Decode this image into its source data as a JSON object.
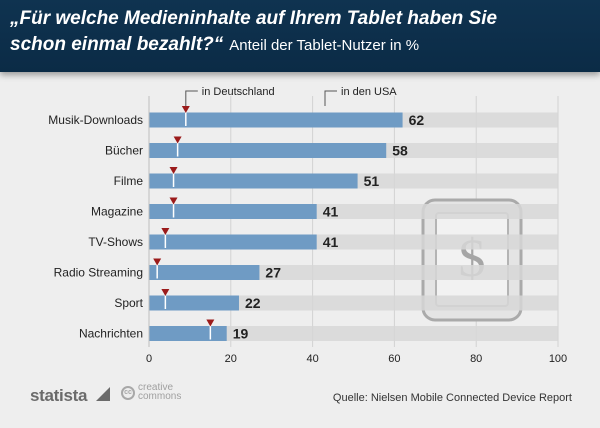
{
  "header": {
    "title_line1": "„Für welche Medieninhalte auf Ihrem Tablet haben Sie",
    "title_line2": "schon einmal bezahlt?“",
    "subtitle": "Anteil der Tablet-Nutzer in %"
  },
  "footer": {
    "brand": "statista",
    "license_line1": "creative",
    "license_line2": "commons",
    "license_badge": "cc",
    "source": "Quelle: Nielsen Mobile Connected Device Report"
  },
  "colors": {
    "bar": "#6f9bc4",
    "track": "#d7d7d7",
    "marker": "#9b1b1b",
    "header": "#0f3350"
  },
  "icon": {
    "name": "tablet-dollar-icon",
    "glyph": "$"
  },
  "chart_data": {
    "type": "bar",
    "orientation": "horizontal",
    "title": "„Für welche Medieninhalte auf Ihrem Tablet haben Sie schon einmal bezahlt?“",
    "subtitle": "Anteil der Tablet-Nutzer in %",
    "categories": [
      "Musik-Downloads",
      "Bücher",
      "Filme",
      "Magazine",
      "TV-Shows",
      "Radio Streaming",
      "Sport",
      "Nachrichten"
    ],
    "series": [
      {
        "name": "in den USA",
        "values": [
          62,
          58,
          51,
          41,
          41,
          27,
          22,
          19
        ]
      },
      {
        "name": "in Deutschland",
        "values": [
          9,
          7,
          6,
          6,
          4,
          2,
          4,
          15
        ]
      }
    ],
    "xticks": [
      0,
      20,
      40,
      60,
      80,
      100
    ],
    "xlim": [
      0,
      100
    ],
    "grid": true,
    "legend": "top, callout labels"
  }
}
